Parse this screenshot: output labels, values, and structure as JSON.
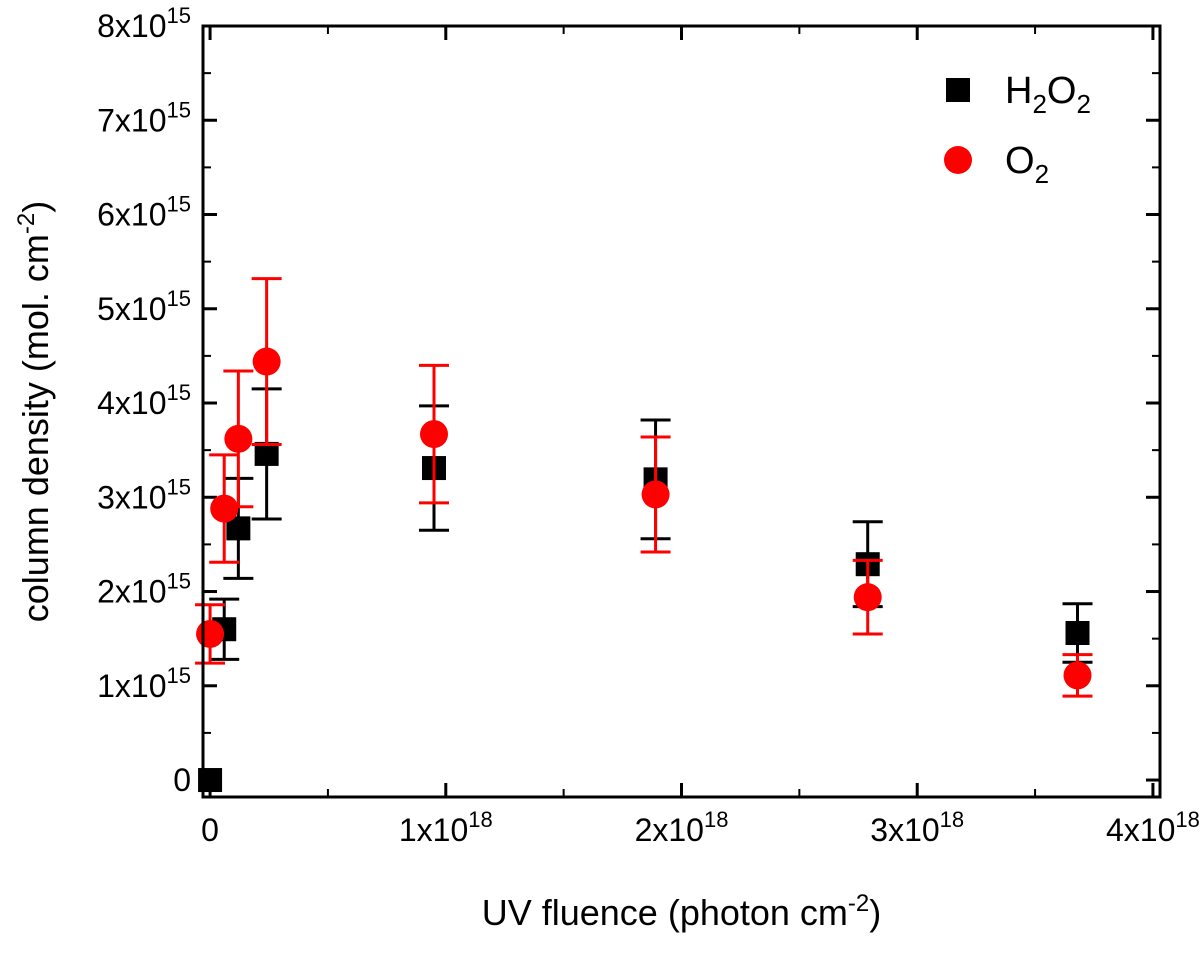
{
  "chart_data": {
    "type": "scatter",
    "title": "",
    "xlabel": {
      "main": "UV fluence (photon cm",
      "sup": "-2",
      "tail": ")"
    },
    "ylabel": {
      "main": "column density (mol. cm",
      "sup": "-2",
      "tail": ")"
    },
    "xlim": [
      -3e+16,
      4.03e+18
    ],
    "ylim": [
      -180000000000000.0,
      8000000000000000.0
    ],
    "x_ticks": [
      {
        "value": 0,
        "base": "0",
        "exp": ""
      },
      {
        "value": 1e+18,
        "base": "1x10",
        "exp": "18"
      },
      {
        "value": 2e+18,
        "base": "2x10",
        "exp": "18"
      },
      {
        "value": 3e+18,
        "base": "3x10",
        "exp": "18"
      },
      {
        "value": 4e+18,
        "base": "4x10",
        "exp": "18"
      }
    ],
    "y_ticks": [
      {
        "value": 0,
        "base": "0",
        "exp": ""
      },
      {
        "value": 1000000000000000.0,
        "base": "1x10",
        "exp": "15"
      },
      {
        "value": 2000000000000000.0,
        "base": "2x10",
        "exp": "15"
      },
      {
        "value": 3000000000000000.0,
        "base": "3x10",
        "exp": "15"
      },
      {
        "value": 4000000000000000.0,
        "base": "4x10",
        "exp": "15"
      },
      {
        "value": 5000000000000000.0,
        "base": "5x10",
        "exp": "15"
      },
      {
        "value": 6000000000000000.0,
        "base": "6x10",
        "exp": "15"
      },
      {
        "value": 7000000000000000.0,
        "base": "7x10",
        "exp": "15"
      },
      {
        "value": 8000000000000000.0,
        "base": "8x10",
        "exp": "15"
      }
    ],
    "legend_position": "top-right",
    "series": [
      {
        "name": "H2O2",
        "label_parts": [
          [
            "H",
            "normal"
          ],
          [
            "2",
            "sub"
          ],
          [
            "O",
            "normal"
          ],
          [
            "2",
            "sub"
          ]
        ],
        "marker": "square",
        "color": "#000000",
        "points": [
          {
            "x": 0.0,
            "y": 0.0,
            "err": 0
          },
          {
            "x": 6e+16,
            "y": 1600000000000000.0,
            "err": 320000000000000.0
          },
          {
            "x": 1.2e+17,
            "y": 2670000000000000.0,
            "err": 530000000000000.0
          },
          {
            "x": 2.4e+17,
            "y": 3460000000000000.0,
            "err": 690000000000000.0
          },
          {
            "x": 9.5e+17,
            "y": 3310000000000000.0,
            "err": 660000000000000.0
          },
          {
            "x": 1.89e+18,
            "y": 3190000000000000.0,
            "err": 630000000000000.0
          },
          {
            "x": 2.79e+18,
            "y": 2290000000000000.0,
            "err": 450000000000000.0
          },
          {
            "x": 3.68e+18,
            "y": 1560000000000000.0,
            "err": 310000000000000.0
          }
        ]
      },
      {
        "name": "O2",
        "label_parts": [
          [
            "O",
            "normal"
          ],
          [
            "2",
            "sub"
          ]
        ],
        "marker": "circle",
        "color": "#ff0000",
        "points": [
          {
            "x": 0.0,
            "y": 1550000000000000.0,
            "err": 310000000000000.0
          },
          {
            "x": 6e+16,
            "y": 2880000000000000.0,
            "err": 570000000000000.0
          },
          {
            "x": 1.2e+17,
            "y": 3620000000000000.0,
            "err": 720000000000000.0
          },
          {
            "x": 2.4e+17,
            "y": 4440000000000000.0,
            "err": 880000000000000.0
          },
          {
            "x": 9.5e+17,
            "y": 3670000000000000.0,
            "err": 730000000000000.0
          },
          {
            "x": 1.89e+18,
            "y": 3030000000000000.0,
            "err": 610000000000000.0
          },
          {
            "x": 2.79e+18,
            "y": 1940000000000000.0,
            "err": 390000000000000.0
          },
          {
            "x": 3.68e+18,
            "y": 1110000000000000.0,
            "err": 220000000000000.0
          }
        ]
      }
    ]
  }
}
